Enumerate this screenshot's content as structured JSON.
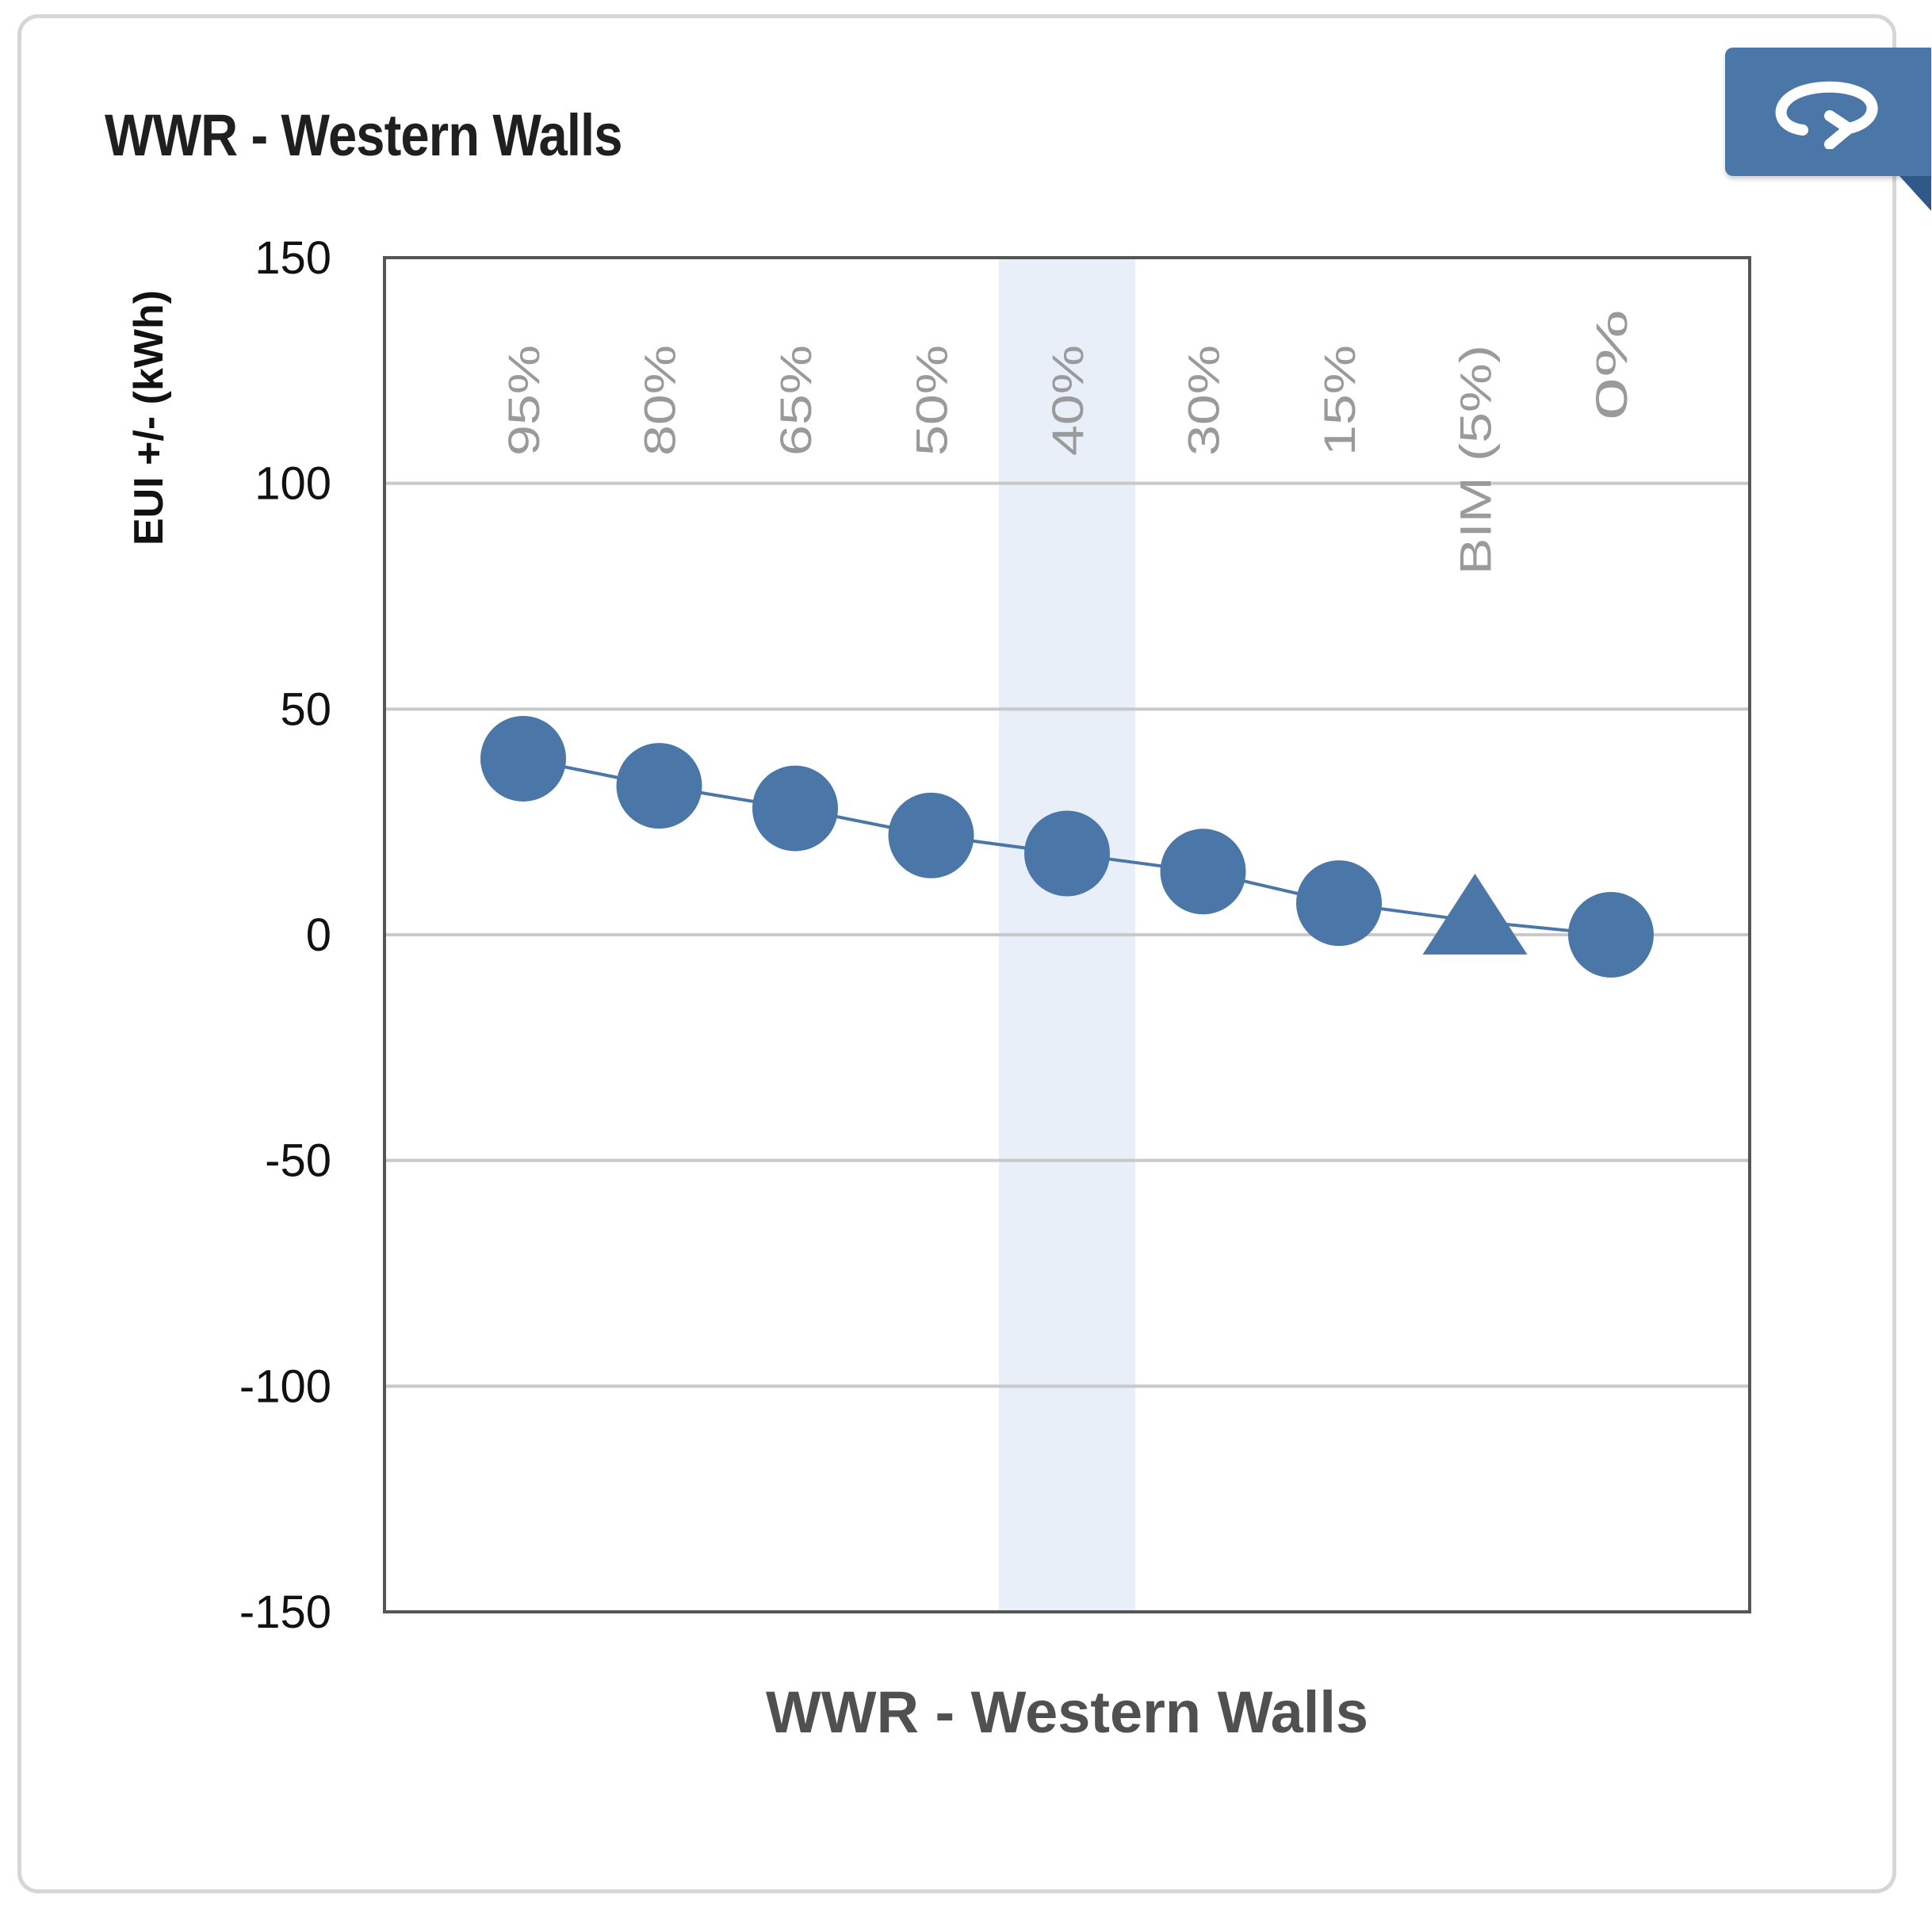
{
  "card": {
    "title": "WWR - Western Walls",
    "flip_icon": "flip-back-icon"
  },
  "colors": {
    "marker": "#4a76a8",
    "highlight_band": "#e8eff8",
    "grid": "#c9c9c9",
    "frame": "#555555",
    "category_label": "#9a9a9a"
  },
  "chart_data": {
    "type": "line",
    "title": "",
    "xlabel": "WWR - Western Walls",
    "ylabel": "EUI +/- (kWh)",
    "ylim": [
      -150,
      150
    ],
    "yticks": [
      150,
      100,
      50,
      0,
      -50,
      -100,
      -150
    ],
    "grid": true,
    "categories": [
      "95%",
      "80%",
      "65%",
      "50%",
      "40%",
      "30%",
      "15%",
      "BIM (5%)",
      "0%"
    ],
    "highlighted_category": "40%",
    "series": [
      {
        "values": [
          39,
          33,
          28,
          22,
          18,
          14,
          7,
          3,
          0
        ],
        "markers": [
          "circle",
          "circle",
          "circle",
          "circle",
          "circle",
          "circle",
          "circle",
          "triangle",
          "circle"
        ]
      }
    ]
  }
}
